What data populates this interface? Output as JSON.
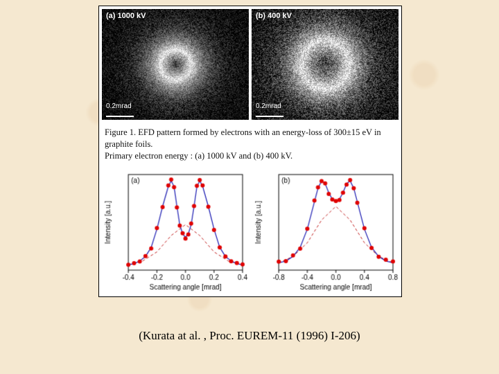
{
  "images": {
    "a": {
      "label": "(a) 1000 kV",
      "scale": "0.2mrad"
    },
    "b": {
      "label": "(b) 400 kV",
      "scale": "0.2mrad"
    }
  },
  "caption_line1": "Figure 1. EFD pattern formed by electrons with an energy-loss of 300±15 eV in graphite foils.",
  "caption_line2": "Primary electron energy : (a) 1000 kV and (b) 400 kV.",
  "chart_a": {
    "panel_label": "(a)",
    "xlabel": "Scattering angle [mrad]",
    "ylabel": "Intensity [a.u.]",
    "xlim": [
      -0.4,
      0.4
    ],
    "ylim": [
      0,
      1.05
    ],
    "xticks": [
      -0.4,
      -0.2,
      0.0,
      0.2,
      0.4
    ],
    "data_x": [
      -0.4,
      -0.36,
      -0.32,
      -0.28,
      -0.24,
      -0.2,
      -0.16,
      -0.12,
      -0.1,
      -0.08,
      -0.06,
      -0.04,
      -0.02,
      0.0,
      0.02,
      0.04,
      0.06,
      0.08,
      0.1,
      0.12,
      0.16,
      0.2,
      0.24,
      0.28,
      0.32,
      0.36,
      0.4
    ],
    "data_y": [
      0.06,
      0.07,
      0.1,
      0.15,
      0.25,
      0.45,
      0.7,
      0.92,
      0.98,
      0.92,
      0.7,
      0.5,
      0.4,
      0.36,
      0.4,
      0.5,
      0.7,
      0.92,
      0.98,
      0.92,
      0.7,
      0.45,
      0.25,
      0.15,
      0.1,
      0.07,
      0.06
    ],
    "lorentz_x": [
      -0.4,
      -0.3,
      -0.2,
      -0.1,
      0.0,
      0.1,
      0.2,
      0.3,
      0.4
    ],
    "lorentz_y": [
      0.06,
      0.1,
      0.2,
      0.38,
      0.5,
      0.38,
      0.2,
      0.1,
      0.06
    ],
    "marker_color": "#e00000",
    "fit_color": "#1818b0",
    "lorentz_color": "#c02020",
    "marker_size": 3,
    "grid_color": "#000000"
  },
  "chart_b": {
    "panel_label": "(b)",
    "xlabel": "Scattering angle [mrad]",
    "ylabel": "Intensity [a.u.]",
    "xlim": [
      -0.8,
      0.8
    ],
    "ylim": [
      0,
      1.05
    ],
    "xticks": [
      -0.8,
      -0.4,
      0.0,
      0.4,
      0.8
    ],
    "data_x": [
      -0.8,
      -0.7,
      -0.6,
      -0.5,
      -0.4,
      -0.3,
      -0.25,
      -0.2,
      -0.15,
      -0.1,
      -0.05,
      0.0,
      0.05,
      0.1,
      0.15,
      0.2,
      0.25,
      0.3,
      0.4,
      0.5,
      0.6,
      0.7,
      0.8
    ],
    "data_y": [
      0.08,
      0.1,
      0.15,
      0.25,
      0.45,
      0.75,
      0.9,
      0.98,
      0.95,
      0.85,
      0.78,
      0.75,
      0.78,
      0.85,
      0.95,
      0.98,
      0.9,
      0.75,
      0.45,
      0.25,
      0.15,
      0.1,
      0.08
    ],
    "lorentz_x": [
      -0.8,
      -0.6,
      -0.4,
      -0.2,
      0.0,
      0.2,
      0.4,
      0.6,
      0.8
    ],
    "lorentz_y": [
      0.08,
      0.15,
      0.3,
      0.55,
      0.7,
      0.55,
      0.3,
      0.15,
      0.08
    ],
    "marker_color": "#e00000",
    "fit_color": "#1818b0",
    "lorentz_color": "#c02020",
    "marker_size": 3,
    "grid_color": "#000000"
  },
  "citation": "(Kurata at al. , Proc. EUREM-11 (1996) I-206)",
  "ring_a": {
    "inner_r": 10,
    "peak_r": 22,
    "outer_r": 70,
    "noise": 0.9
  },
  "ring_b": {
    "inner_r": 18,
    "peak_r": 35,
    "outer_r": 90,
    "noise": 1.3
  }
}
